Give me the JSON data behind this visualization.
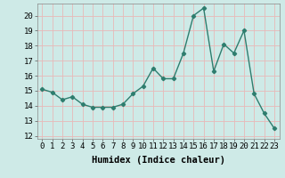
{
  "x": [
    0,
    1,
    2,
    3,
    4,
    5,
    6,
    7,
    8,
    9,
    10,
    11,
    12,
    13,
    14,
    15,
    16,
    17,
    18,
    19,
    20,
    21,
    22,
    23
  ],
  "y": [
    15.1,
    14.9,
    14.4,
    14.6,
    14.1,
    13.9,
    13.9,
    13.9,
    14.1,
    14.8,
    15.3,
    16.5,
    15.8,
    15.8,
    17.5,
    20.0,
    20.5,
    16.3,
    18.1,
    17.5,
    19.0,
    14.8,
    13.5,
    12.5
  ],
  "line_color": "#2e7d6e",
  "marker": "D",
  "marker_size": 2.2,
  "linewidth": 1.0,
  "bg_color": "#ceeae7",
  "grid_color": "#e8b8b8",
  "xlabel": "Humidex (Indice chaleur)",
  "xlabel_fontsize": 7.5,
  "xlabel_fontweight": "bold",
  "xtick_labels": [
    "0",
    "1",
    "2",
    "3",
    "4",
    "5",
    "6",
    "7",
    "8",
    "9",
    "10",
    "11",
    "12",
    "13",
    "14",
    "15",
    "16",
    "17",
    "18",
    "19",
    "20",
    "21",
    "22",
    "23"
  ],
  "ytick_min": 12,
  "ytick_max": 20,
  "ytick_step": 1,
  "xlim": [
    -0.5,
    23.5
  ],
  "ylim": [
    11.8,
    20.8
  ],
  "tick_fontsize": 6.5,
  "figsize": [
    3.2,
    2.0
  ],
  "dpi": 100
}
